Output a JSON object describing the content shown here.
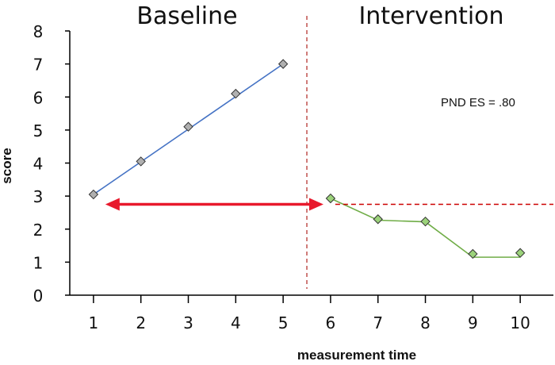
{
  "chart_data": {
    "type": "line",
    "xlabel": "measurement time",
    "ylabel": "score",
    "xlim": [
      0.5,
      10.7
    ],
    "ylim": [
      0,
      8
    ],
    "x_ticks": [
      1,
      2,
      3,
      4,
      5,
      6,
      7,
      8,
      9,
      10
    ],
    "y_ticks": [
      0,
      1,
      2,
      3,
      4,
      5,
      6,
      7,
      8
    ],
    "grid": false,
    "phases": [
      {
        "label": "Baseline",
        "x_range": [
          1,
          5
        ]
      },
      {
        "label": "Intervention",
        "x_range": [
          6,
          10
        ]
      }
    ],
    "phase_change_x": 5.5,
    "series": [
      {
        "color": "#4472c4",
        "marker_color": "#b0b0b0",
        "x": [
          1,
          2,
          3,
          4,
          5
        ],
        "y": [
          3.05,
          4.05,
          5.1,
          6.1,
          7.0
        ]
      },
      {
        "color": "#70ad47",
        "marker_color": "#9bd27a",
        "x": [
          6,
          7,
          8,
          9,
          10
        ],
        "y": [
          2.93,
          2.3,
          2.23,
          1.25,
          1.28
        ]
      }
    ],
    "trend": {
      "color": "#4472c4",
      "x": [
        1,
        5
      ],
      "y": [
        3.05,
        7.0
      ]
    },
    "intervention_path": {
      "color": "#70ad47",
      "x": [
        6,
        7,
        8,
        9,
        10
      ],
      "y": [
        2.93,
        2.27,
        2.22,
        1.15,
        1.15
      ]
    },
    "reference_line": {
      "y": 2.75,
      "x_range": [
        6.1,
        10.7
      ],
      "color": "#cc0000"
    },
    "arrow": {
      "y": 2.75,
      "x_range": [
        1.25,
        5.85
      ],
      "color": "#e8192c"
    },
    "annotation": "PND ES = .80",
    "colors": {
      "phase_line": "#c0504d",
      "axis": "#000000"
    }
  }
}
